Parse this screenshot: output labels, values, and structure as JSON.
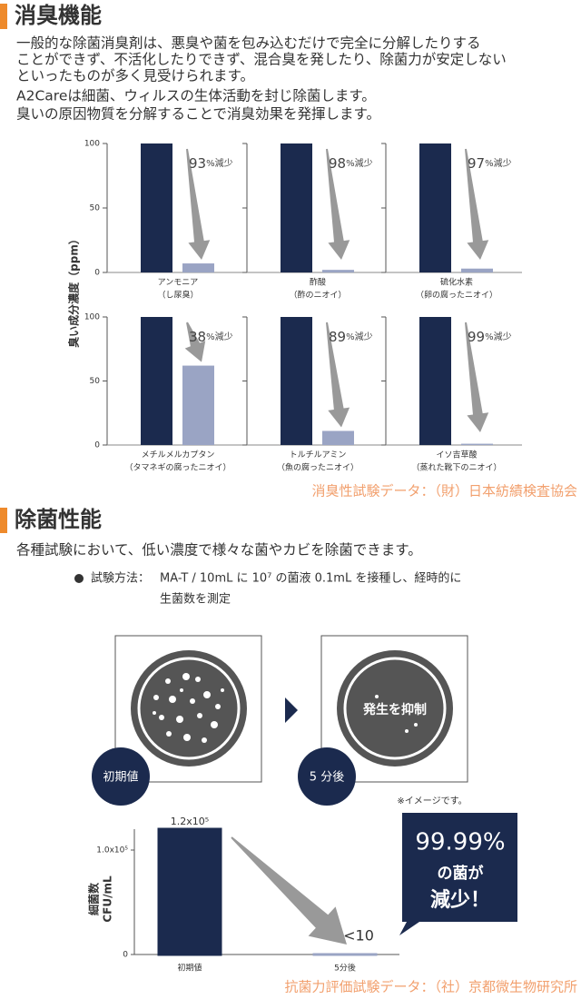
{
  "sections": [
    {
      "title": "消臭機能",
      "paragraph": [
        "一般的な除菌消臭剤は、悪臭や菌を包み込むだけで完全に分解したりする",
        "ことができず、不活化したりできず、混合臭を発したり、除菌力が安定しない",
        "といったものが多く見受けられます。",
        "A2Careは細菌、ウィルスの生体活動を封じ除菌します。",
        "臭いの原因物質を分解することで消臭効果を発揮します。"
      ],
      "source": "消臭性試験データ：（財）日本紡績検査協会"
    },
    {
      "title": "除菌性能",
      "description": "各種試験において、低い濃度で様々な菌やカビを除菌できます。",
      "method": {
        "label": "試験方法：",
        "lines": [
          "MA-T / 10mL に 10⁷ の菌液 0.1mL を接種し、経時的に",
          "生菌数を測定"
        ]
      },
      "dish_labels": [
        "初期値",
        "5 分後"
      ],
      "dish_text": "発生を抑制",
      "note": "※イメージです。",
      "callout": [
        "99.99%",
        "の菌が",
        "減少！"
      ],
      "source": "抗菌力評価試験データ：（社）京都微生物研究所"
    }
  ],
  "chart_data": [
    {
      "type": "bar",
      "ylabel": "臭い成分濃度（ppm）",
      "title": "アンモニア",
      "subtitle": "（し尿臭）",
      "categories": [
        null,
        null
      ],
      "values": [
        100,
        7
      ],
      "colors": [
        "#1b2a4e",
        "#9aa4c4"
      ],
      "annotation": "93%減少",
      "ylim": [
        0,
        100
      ],
      "yticks": [
        0,
        50,
        100
      ]
    },
    {
      "type": "bar",
      "title": "酢酸",
      "subtitle": "（酢のニオイ）",
      "categories": [
        null,
        null
      ],
      "values": [
        100,
        2
      ],
      "colors": [
        "#1b2a4e",
        "#9aa4c4"
      ],
      "annotation": "98%減少",
      "ylim": [
        0,
        100
      ],
      "yticks": [
        0,
        50,
        100
      ]
    },
    {
      "type": "bar",
      "title": "硫化水素",
      "subtitle": "（卵の腐ったニオイ）",
      "categories": [
        null,
        null
      ],
      "values": [
        100,
        3
      ],
      "colors": [
        "#1b2a4e",
        "#9aa4c4"
      ],
      "annotation": "97%減少",
      "ylim": [
        0,
        100
      ],
      "yticks": [
        0,
        50,
        100
      ]
    },
    {
      "type": "bar",
      "title": "メチルメルカプタン",
      "subtitle": "（タマネギの腐ったニオイ）",
      "categories": [
        null,
        null
      ],
      "values": [
        100,
        62
      ],
      "colors": [
        "#1b2a4e",
        "#9aa4c4"
      ],
      "annotation": "38%減少",
      "ylim": [
        0,
        100
      ],
      "yticks": [
        0,
        50,
        100
      ]
    },
    {
      "type": "bar",
      "title": "トルチルアミン",
      "subtitle": "（魚の腐ったニオイ）",
      "categories": [
        null,
        null
      ],
      "values": [
        100,
        11
      ],
      "colors": [
        "#1b2a4e",
        "#9aa4c4"
      ],
      "annotation": "89%減少",
      "ylim": [
        0,
        100
      ],
      "yticks": [
        0,
        50,
        100
      ]
    },
    {
      "type": "bar",
      "title": "イソ吉草酸",
      "subtitle": "（蒸れた靴下のニオイ）",
      "categories": [
        null,
        null
      ],
      "values": [
        100,
        1
      ],
      "colors": [
        "#1b2a4e",
        "#9aa4c4"
      ],
      "annotation": "99%減少",
      "ylim": [
        0,
        100
      ],
      "yticks": [
        0,
        50,
        100
      ]
    },
    {
      "type": "bar",
      "ylabel": [
        "細菌数",
        "CFU/mL"
      ],
      "categories": [
        "初期値",
        "5分後"
      ],
      "values": [
        120000,
        10
      ],
      "value_labels": [
        "1.2x10⁵",
        "<10"
      ],
      "colors": [
        "#1b2a4e",
        "#9aa4c4"
      ],
      "ylim": [
        0,
        120000
      ],
      "yticks": [
        0,
        {
          "value": 100000,
          "label": "1.0x10⁵"
        }
      ]
    }
  ]
}
